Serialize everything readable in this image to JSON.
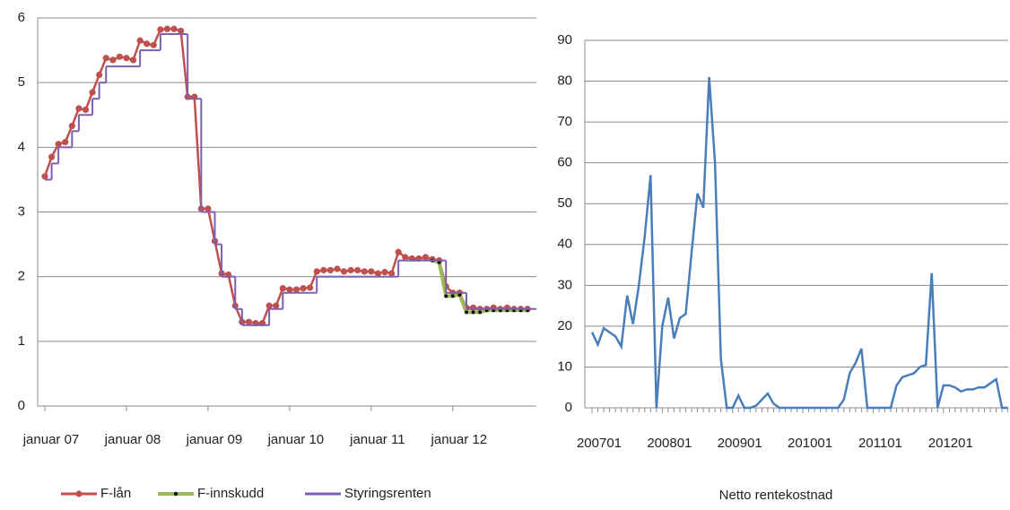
{
  "chart_data": [
    {
      "type": "line",
      "categories": [
        "januar 07",
        null,
        null,
        null,
        null,
        null,
        null,
        null,
        null,
        null,
        null,
        null,
        "januar 08",
        null,
        null,
        null,
        null,
        null,
        null,
        null,
        null,
        null,
        null,
        null,
        "januar 09",
        null,
        null,
        null,
        null,
        null,
        null,
        null,
        null,
        null,
        null,
        null,
        "januar 10",
        null,
        null,
        null,
        null,
        null,
        null,
        null,
        null,
        null,
        null,
        null,
        "januar 11",
        null,
        null,
        null,
        null,
        null,
        null,
        null,
        null,
        null,
        null,
        null,
        "januar 12",
        null,
        null,
        null,
        null,
        null,
        null,
        null,
        null,
        null,
        null,
        null
      ],
      "series": [
        {
          "name": "F-lån",
          "color": "#c0504d",
          "marker": "circle",
          "values": [
            3.55,
            3.85,
            4.05,
            4.08,
            4.33,
            4.6,
            4.58,
            4.85,
            5.12,
            5.38,
            5.35,
            5.4,
            5.38,
            5.35,
            5.65,
            5.6,
            5.58,
            5.82,
            5.83,
            5.83,
            5.8,
            4.78,
            4.78,
            3.05,
            3.05,
            2.55,
            2.05,
            2.03,
            1.55,
            1.3,
            1.3,
            1.28,
            1.28,
            1.55,
            1.55,
            1.82,
            1.8,
            1.8,
            1.82,
            1.83,
            2.08,
            2.1,
            2.1,
            2.12,
            2.08,
            2.1,
            2.1,
            2.08,
            2.08,
            2.05,
            2.07,
            2.05,
            2.38,
            2.3,
            2.28,
            2.28,
            2.3,
            2.27,
            2.25,
            1.85,
            1.75,
            1.75,
            1.52,
            1.52,
            1.5,
            1.5,
            1.52,
            1.5,
            1.52,
            1.5,
            1.5,
            1.5
          ]
        },
        {
          "name": "F-innskudd",
          "color": "#9bbb59",
          "marker": "dot",
          "values": [
            null,
            null,
            null,
            null,
            null,
            null,
            null,
            null,
            null,
            null,
            null,
            null,
            null,
            null,
            null,
            null,
            null,
            null,
            null,
            null,
            null,
            null,
            null,
            null,
            null,
            null,
            null,
            null,
            null,
            null,
            null,
            null,
            null,
            null,
            null,
            null,
            null,
            null,
            null,
            null,
            null,
            null,
            null,
            null,
            null,
            null,
            null,
            null,
            null,
            null,
            null,
            null,
            null,
            null,
            null,
            null,
            null,
            2.25,
            2.22,
            1.7,
            1.7,
            1.72,
            1.45,
            1.45,
            1.45,
            1.48,
            1.48,
            1.48,
            1.48,
            1.48,
            1.48,
            1.48
          ]
        },
        {
          "name": "Styringsrenten",
          "color": "#7b5fb0",
          "drawstyle": "steps-post",
          "values": [
            3.5,
            3.75,
            4.0,
            4.0,
            4.25,
            4.5,
            4.5,
            4.75,
            5.0,
            5.25,
            5.25,
            5.25,
            5.25,
            5.25,
            5.5,
            5.5,
            5.5,
            5.75,
            5.75,
            5.75,
            5.75,
            4.75,
            4.75,
            3.0,
            3.0,
            2.5,
            2.0,
            2.0,
            1.5,
            1.25,
            1.25,
            1.25,
            1.25,
            1.5,
            1.5,
            1.75,
            1.75,
            1.75,
            1.75,
            1.75,
            2.0,
            2.0,
            2.0,
            2.0,
            2.0,
            2.0,
            2.0,
            2.0,
            2.0,
            2.0,
            2.0,
            2.0,
            2.25,
            2.25,
            2.25,
            2.25,
            2.25,
            2.25,
            2.25,
            1.75,
            1.75,
            1.75,
            1.5,
            1.5,
            1.5,
            1.5,
            1.5,
            1.5,
            1.5,
            1.5,
            1.5,
            1.5
          ]
        }
      ],
      "ylim": [
        0,
        6
      ],
      "yticks": [
        0,
        1,
        2,
        3,
        4,
        5,
        6
      ],
      "grid": true,
      "legend": "bottom"
    },
    {
      "type": "line",
      "xlabel": "Netto rentekostnad",
      "categories": [
        "200701",
        null,
        null,
        null,
        null,
        null,
        null,
        null,
        null,
        null,
        null,
        null,
        "200801",
        null,
        null,
        null,
        null,
        null,
        null,
        null,
        null,
        null,
        null,
        null,
        "200901",
        null,
        null,
        null,
        null,
        null,
        null,
        null,
        null,
        null,
        null,
        null,
        "201001",
        null,
        null,
        null,
        null,
        null,
        null,
        null,
        null,
        null,
        null,
        null,
        "201101",
        null,
        null,
        null,
        null,
        null,
        null,
        null,
        null,
        null,
        null,
        null,
        "201201",
        null,
        null,
        null,
        null,
        null,
        null,
        null,
        null,
        null,
        null,
        null
      ],
      "series": [
        {
          "color": "#4a7ebb",
          "values": [
            18.5,
            15.5,
            19.5,
            18.5,
            17.5,
            15,
            27.5,
            20.5,
            30,
            42,
            57,
            0,
            20,
            27,
            17,
            22,
            23,
            38,
            52.5,
            49,
            81,
            60,
            12,
            0,
            0,
            3,
            0,
            0,
            0.5,
            2,
            3.5,
            1,
            0,
            0,
            0,
            0,
            0,
            0,
            0,
            0,
            0,
            0,
            0,
            2,
            8.5,
            11,
            14.5,
            0,
            0,
            0,
            0,
            0,
            5.5,
            7.5,
            8,
            8.5,
            10,
            10.5,
            33,
            0,
            5.5,
            5.5,
            5,
            4,
            4.5,
            4.5,
            5,
            5,
            6,
            7,
            0,
            0
          ]
        }
      ],
      "ylim": [
        0,
        90
      ],
      "yticks": [
        0,
        10,
        20,
        30,
        40,
        50,
        60,
        70,
        80,
        90
      ],
      "grid": true
    }
  ]
}
